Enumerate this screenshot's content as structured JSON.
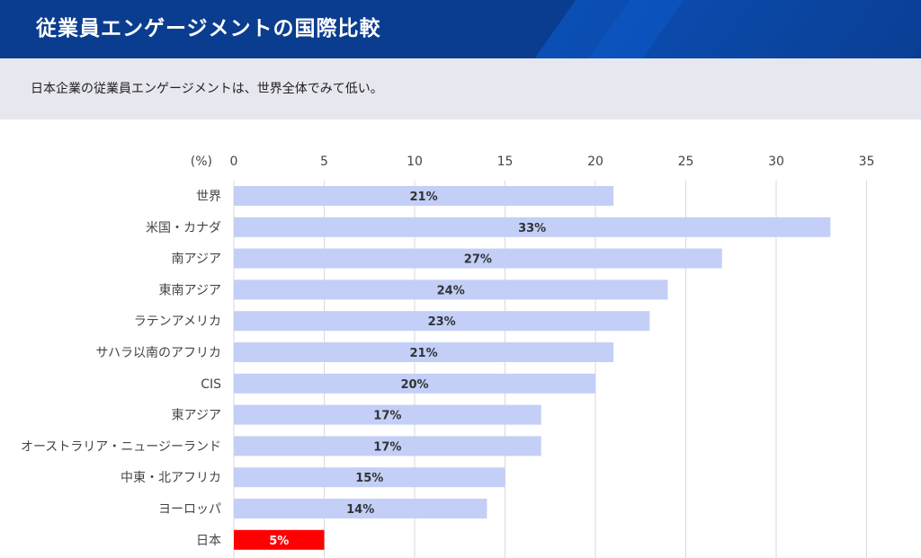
{
  "header": {
    "title": "従業員エンゲージメントの国際比較"
  },
  "subtitle": "日本企業の従業員エンゲージメントは、世界全体でみて低い。",
  "colors": {
    "bar": "#c3cff7",
    "highlight": "#ff0000",
    "header": "#0a3d8f",
    "subbar": "#e7e7ef"
  },
  "chart_data": {
    "type": "bar",
    "orientation": "horizontal",
    "unit_label": "(%)",
    "xlim": [
      0,
      35
    ],
    "ticks": [
      0,
      5,
      10,
      15,
      20,
      25,
      30,
      35
    ],
    "grid": true,
    "highlight_category": "日本",
    "categories": [
      "世界",
      "米国・カナダ",
      "南アジア",
      "東南アジア",
      "ラテンアメリカ",
      "サハラ以南のアフリカ",
      "CIS",
      "東アジア",
      "オーストラリア・ニュージーランド",
      "中東・北アフリカ",
      "ヨーロッパ",
      "日本"
    ],
    "values": [
      21,
      33,
      27,
      24,
      23,
      21,
      20,
      17,
      17,
      15,
      14,
      5
    ],
    "labels": [
      "21%",
      "33%",
      "27%",
      "24%",
      "23%",
      "21%",
      "20%",
      "17%",
      "17%",
      "15%",
      "14%",
      "5%"
    ]
  }
}
